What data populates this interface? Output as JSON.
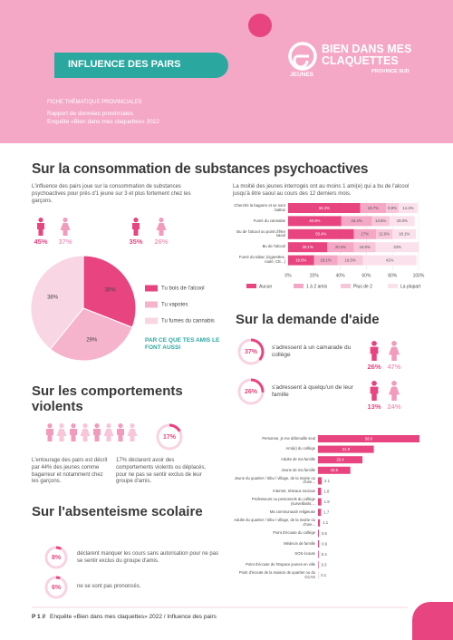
{
  "header": {
    "banner": "INFLUENCE DES PAIRS",
    "logo_main": "BIEN DANS MES CLAQUETTES",
    "logo_region": "PROVINCE SUD",
    "logo_jeunes": "JEUNES",
    "kicker": "FICHE THÉMATIQUE PROVINCIALES",
    "subtitle": "Rapport de données provinciales",
    "survey": "Enquête «Bien dans mes claquettes» 2022"
  },
  "consumption": {
    "title": "Sur la consommation de substances psychoactives",
    "text": "L'influence des pairs joue sur la consommation de substances psychoactives pour près d'1 jeune sur 3 et plus fortement chez les garçons.",
    "stats": [
      "45%",
      "37%",
      "35%",
      "26%"
    ],
    "note": "PAR CE QUE TES AMIS LE FONT AUSSI",
    "friends_text": "La moitié des jeunes interrogés ont au moins 1 ami(e) qui a bu de l'alcool jusqu'à être saoul au cours des 12 derniers mois."
  },
  "help": {
    "title": "Sur la demande d'aide",
    "items": [
      {
        "rate": {
          "value": 37,
          "label": "37%"
        },
        "text": "s'adressent à un camarade du collège",
        "stats": [
          "26%",
          "47%"
        ]
      },
      {
        "rate": {
          "value": 26,
          "label": "26%"
        },
        "text": "s'adressent à quelqu'un de leur famille",
        "stats": [
          "13%",
          "24%"
        ]
      }
    ]
  },
  "violence": {
    "title": "Sur les comportements violents",
    "rate": {
      "value": 17,
      "label": "17%"
    },
    "text_left": "L'entourage des pairs est décrit par 44% des jeunes comme bagarreur et notamment chez les garçons.",
    "text_right": "17% déclarent avoir des comportements violents ou déplacés, pour ne pas se sentir exclus de leur groupe d'amis."
  },
  "absenteeism": {
    "title": "Sur l'absenteisme scolaire",
    "items": [
      {
        "rate": {
          "value": 8,
          "label": "8%"
        },
        "text": "déclarent manquer les cours sans autorisation pour ne pas se sentir exclus du groupe d'amis."
      },
      {
        "rate": {
          "value": 6,
          "label": "6%"
        },
        "text": "ne se sont pas prononcés."
      }
    ]
  },
  "chart_data": [
    {
      "type": "pie",
      "categories": [
        "Tu bois de l'alcool",
        "Tu vapotes",
        "Tu fumes du cannabis"
      ],
      "values": [
        30,
        29,
        38
      ],
      "value_labels": [
        "30%",
        "29%",
        "38%"
      ],
      "colors": [
        "#e8447f",
        "#f5b3cc",
        "#f9d6e3"
      ]
    },
    {
      "type": "bar",
      "categories": [
        "Cherché la bagarre et se sont battus",
        "Fumé du cannabis",
        "Bu de l'alcool ou point d'être saoul",
        "Bu de l'alcool",
        "Fumé du tabac (cigarettes, roulé, CE...)"
      ],
      "series": [
        {
          "name": "Aucun",
          "color": "#e8447f",
          "values": [
            55.3,
            40.8,
            50.4,
            30.1,
            19.8
          ],
          "value_labels": [
            "55.3%",
            "40.8%",
            "50.4%",
            "30.1%",
            "19.8%"
          ]
        },
        {
          "name": "1 à 2 amis",
          "color": "#f4a8c5",
          "values": [
            19.7,
            23.4,
            17,
            20.3,
            18.1
          ],
          "value_labels": [
            "19.7%",
            "23.4%",
            "17%",
            "20.3%",
            "18.1%"
          ]
        },
        {
          "name": "Plus de 2",
          "color": "#f8c6d9",
          "values": [
            9.8,
            13.5,
            12.6,
            16.8,
            19.5
          ],
          "value_labels": [
            "9.8%",
            "13.5%",
            "12.6%",
            "16.8%",
            "19.5%"
          ]
        },
        {
          "name": "La plupart",
          "color": "#fbe1eb",
          "values": [
            14.4,
            19.3,
            18.1,
            33,
            41
          ],
          "value_labels": [
            "14.4%",
            "19.3%",
            "18.1%",
            "33%",
            "41%"
          ]
        }
      ],
      "xlim": [
        0,
        100
      ],
      "xticks": [
        {
          "value": 0,
          "label": "0%"
        },
        {
          "value": 20,
          "label": "20%"
        },
        {
          "value": 40,
          "label": "40%"
        },
        {
          "value": 60,
          "label": "60%"
        },
        {
          "value": 80,
          "label": "80%"
        },
        {
          "value": 100,
          "label": "100%"
        }
      ]
    },
    {
      "type": "bar",
      "color": "#e8447f",
      "categories": [
        "Personne, je me débrouille seul",
        "Ami(e) du collège",
        "Adulte de ma famille",
        "Jeune de ma famille",
        "Jeune du quartier / tribu / village, de la mairie ou d'une...",
        "Internet, réseaux sociaux",
        "Professeurs ou personnels du collège (surveillants,...",
        "Ma communauté religieuse",
        "Adulte du quartier / tribu / village, de la mairie ou d'une...",
        "Point d'écoute du collège",
        "Médecin de famille",
        "SOS écoute",
        "Point d'écoute de l'Espace jeunes en ville",
        "Point d'écoute de la maison de quartier ou du CCAS"
      ],
      "values": [
        58,
        31.9,
        25.4,
        18.5,
        2.1,
        1.8,
        1.9,
        1.7,
        1.1,
        0.5,
        0.6,
        0.4,
        0.3,
        0.1
      ],
      "value_labels": [
        "58.0",
        "31.9",
        "25.4",
        "18.5",
        "2.1",
        "1.8",
        "1.9",
        "1.7",
        "1.1",
        "0.5",
        "0.6",
        "0.4",
        "0.3",
        "0.1"
      ]
    }
  ],
  "footer": {
    "page": "P 1 //",
    "text": "Enquête «Bien dans mes claquettes» 2022 / Influence des pairs"
  }
}
